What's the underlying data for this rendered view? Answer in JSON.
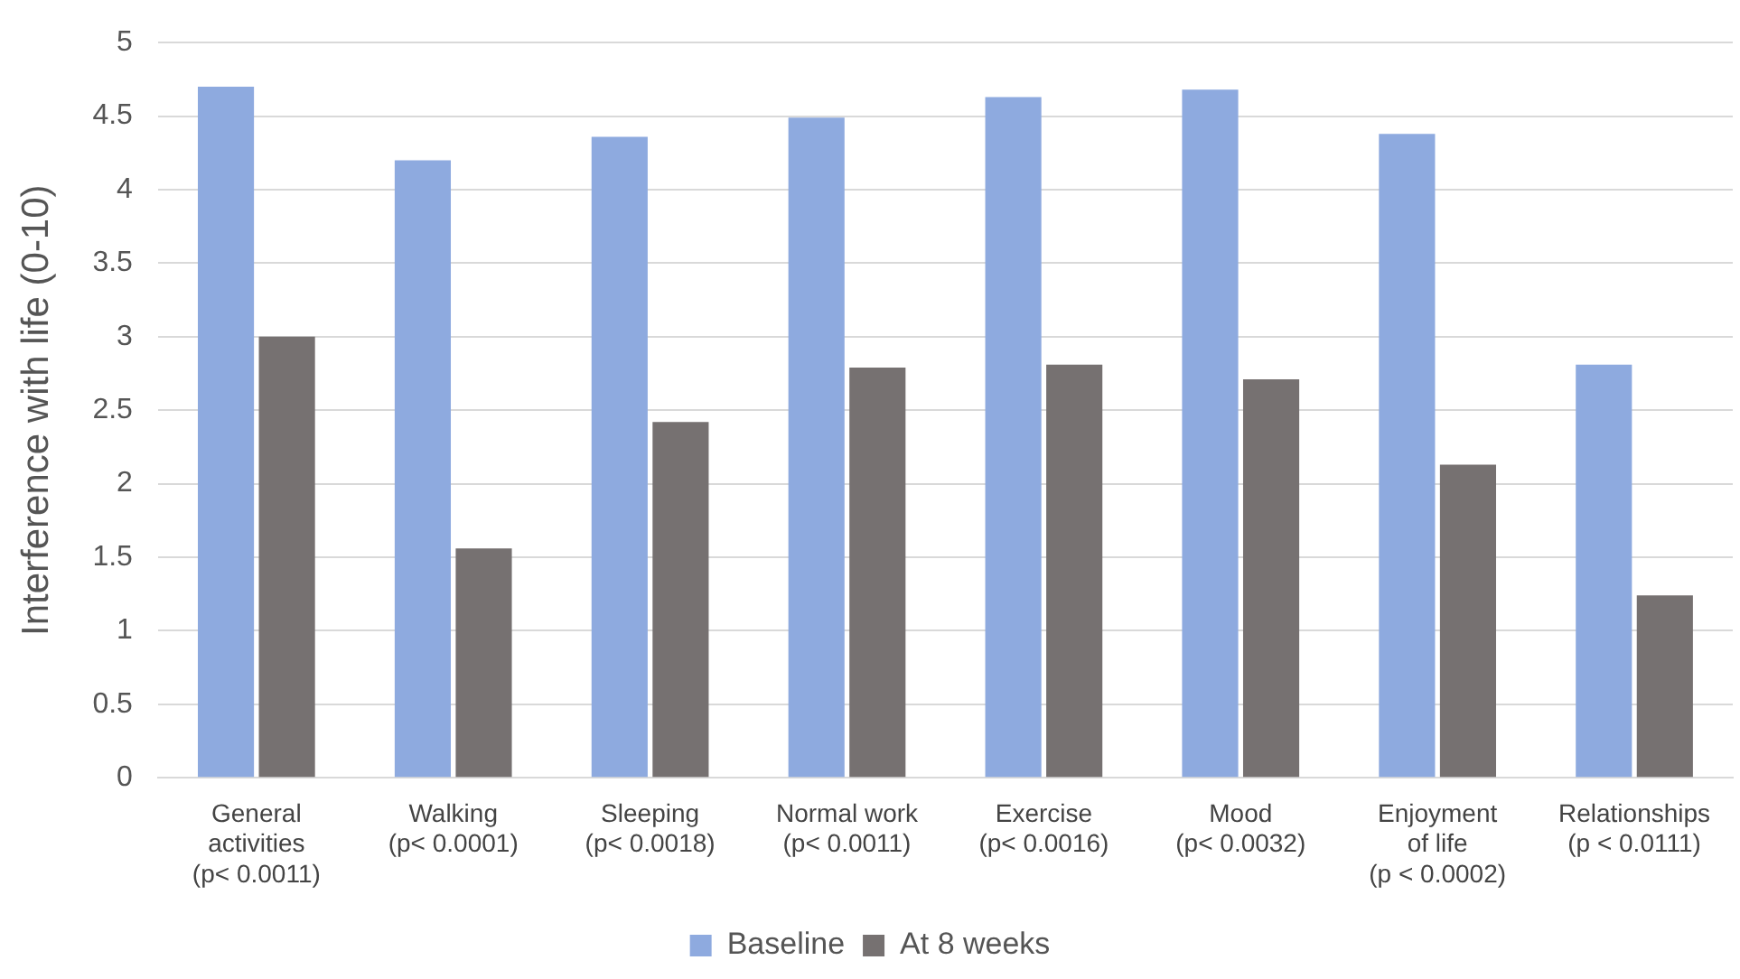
{
  "chart_data": {
    "type": "bar",
    "ylabel": "Interference with life (0-10)",
    "categories": [
      "General\nactivities\n(p< 0.0011)",
      "Walking\n(p< 0.0001)",
      "Sleeping\n(p< 0.0018)",
      "Normal work\n(p< 0.0011)",
      "Exercise\n(p< 0.0016)",
      "Mood\n(p< 0.0032)",
      "Enjoyment\nof life\n(p < 0.0002)",
      "Relationships\n(p < 0.0111)"
    ],
    "series": [
      {
        "name": "Baseline",
        "color": "#8eaadf",
        "values": [
          4.7,
          4.2,
          4.36,
          4.49,
          4.63,
          4.68,
          4.38,
          2.81
        ]
      },
      {
        "name": "At 8 weeks",
        "color": "#767171",
        "values": [
          3.0,
          1.56,
          2.42,
          2.79,
          2.81,
          2.71,
          2.13,
          1.24
        ]
      }
    ],
    "ylim": [
      0,
      5
    ],
    "yticks": [
      0,
      0.5,
      1,
      1.5,
      2,
      2.5,
      3,
      3.5,
      4,
      4.5,
      5
    ],
    "grid": "y",
    "legend": "bottom"
  }
}
